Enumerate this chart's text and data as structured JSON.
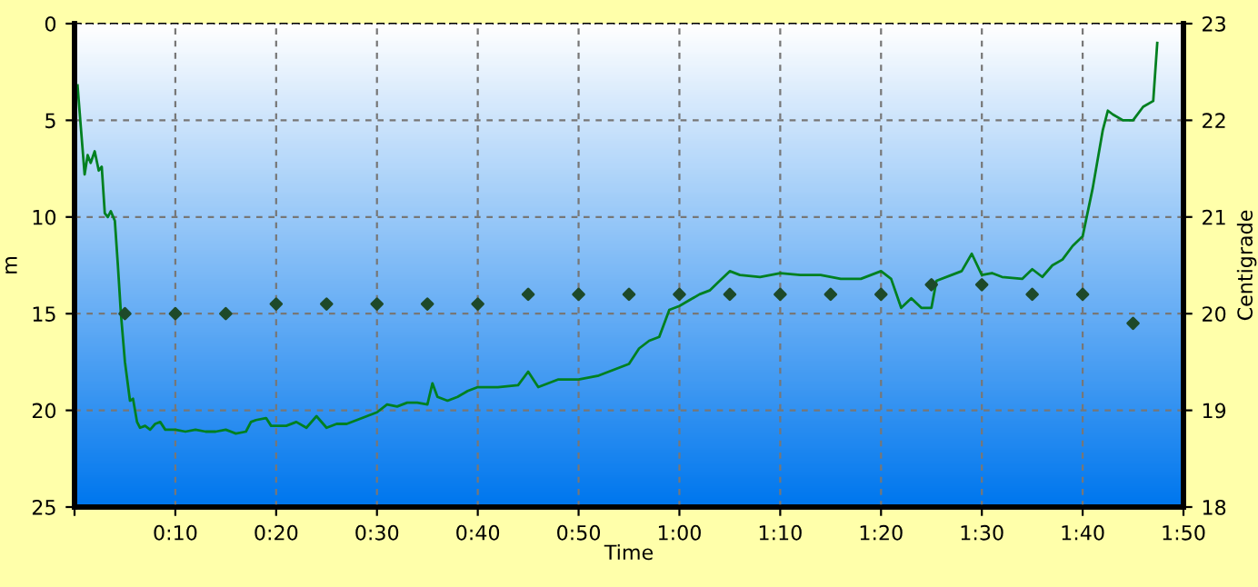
{
  "chart_data": {
    "type": "line",
    "xlabel": "Time",
    "ylabel": "m",
    "y2label": "Centigrade",
    "xlim": [
      0,
      110
    ],
    "xticks": [
      {
        "value": 0,
        "label": null
      },
      {
        "value": 10,
        "label": "0:10"
      },
      {
        "value": 20,
        "label": "0:20"
      },
      {
        "value": 30,
        "label": "0:30"
      },
      {
        "value": 40,
        "label": "0:40"
      },
      {
        "value": 50,
        "label": "0:50"
      },
      {
        "value": 60,
        "label": "1:00"
      },
      {
        "value": 70,
        "label": "1:10"
      },
      {
        "value": 80,
        "label": "1:20"
      },
      {
        "value": 90,
        "label": "1:30"
      },
      {
        "value": 100,
        "label": "1:40"
      },
      {
        "value": 110,
        "label": "1:50"
      }
    ],
    "ylim": [
      25,
      0
    ],
    "yticks": [
      0,
      5,
      10,
      15,
      20,
      25
    ],
    "y2lim": [
      18,
      23
    ],
    "y2ticks": [
      18,
      19,
      20,
      21,
      22,
      23
    ],
    "grid": true,
    "legend": false,
    "series": [
      {
        "color": "#008020",
        "line_style": "solid",
        "x": [
          0.3,
          0.6,
          1.0,
          1.3,
          1.6,
          2.0,
          2.4,
          2.7,
          3.0,
          3.3,
          3.6,
          4.0,
          4.3,
          4.6,
          5.0,
          5.5,
          5.8,
          6.2,
          6.5,
          7,
          7.5,
          8,
          8.5,
          9,
          10,
          11,
          12,
          13,
          14,
          15,
          16,
          17,
          17.5,
          18,
          19,
          19.5,
          20,
          21,
          22,
          23,
          24,
          25,
          26,
          27,
          28,
          29,
          30,
          31,
          32,
          33,
          34,
          35,
          35.5,
          36,
          37,
          38,
          39,
          40,
          42,
          44,
          45,
          46,
          48,
          50,
          52,
          54,
          55,
          56,
          57,
          58,
          59,
          60,
          61,
          62,
          63,
          64,
          65,
          66,
          68,
          70,
          72,
          74,
          76,
          78,
          80,
          81,
          82,
          83,
          84,
          85,
          85.5,
          87,
          88,
          89,
          90,
          91,
          92,
          94,
          95,
          96,
          97,
          98,
          99,
          100,
          101,
          102,
          102.5,
          103,
          104,
          105,
          106,
          107,
          107.4
        ],
        "values": [
          3.2,
          5.2,
          7.8,
          6.8,
          7.2,
          6.6,
          7.6,
          7.4,
          9.8,
          10.0,
          9.7,
          10.2,
          12.5,
          15,
          17.5,
          19.5,
          19.4,
          20.6,
          20.9,
          20.8,
          21.0,
          20.7,
          20.6,
          21.0,
          21.0,
          21.1,
          21.0,
          21.1,
          21.1,
          21.0,
          21.2,
          21.1,
          20.6,
          20.5,
          20.4,
          20.8,
          20.8,
          20.8,
          20.6,
          20.9,
          20.3,
          20.9,
          20.7,
          20.7,
          20.5,
          20.3,
          20.1,
          19.7,
          19.8,
          19.6,
          19.6,
          19.7,
          18.6,
          19.3,
          19.5,
          19.3,
          19.0,
          18.8,
          18.8,
          18.7,
          18.0,
          18.8,
          18.4,
          18.4,
          18.2,
          17.8,
          17.6,
          16.8,
          16.4,
          16.2,
          14.8,
          14.6,
          14.3,
          14.0,
          13.8,
          13.3,
          12.8,
          13.0,
          13.1,
          12.9,
          13.0,
          13.0,
          13.2,
          13.2,
          12.8,
          13.2,
          14.7,
          14.2,
          14.7,
          14.7,
          13.3,
          13.0,
          12.8,
          11.9,
          13.0,
          12.9,
          13.1,
          13.2,
          12.7,
          13.1,
          12.5,
          12.2,
          11.5,
          11.0,
          8.5,
          5.5,
          4.5,
          4.7,
          5.0,
          5.0,
          4.3,
          4.0,
          1.0
        ]
      },
      {
        "type": "scatter",
        "axis": "y2",
        "color": "#1e4a2a",
        "marker": "diamond",
        "x": [
          5,
          10,
          15,
          20,
          25,
          30,
          35,
          40,
          45,
          50,
          55,
          60,
          65,
          70,
          75,
          80,
          85,
          90,
          95,
          100,
          105
        ],
        "values": [
          20.0,
          20.0,
          20.0,
          20.1,
          20.1,
          20.1,
          20.1,
          20.1,
          20.2,
          20.2,
          20.2,
          20.2,
          20.2,
          20.2,
          20.2,
          20.2,
          20.3,
          20.3,
          20.2,
          20.2,
          19.9
        ]
      }
    ]
  }
}
